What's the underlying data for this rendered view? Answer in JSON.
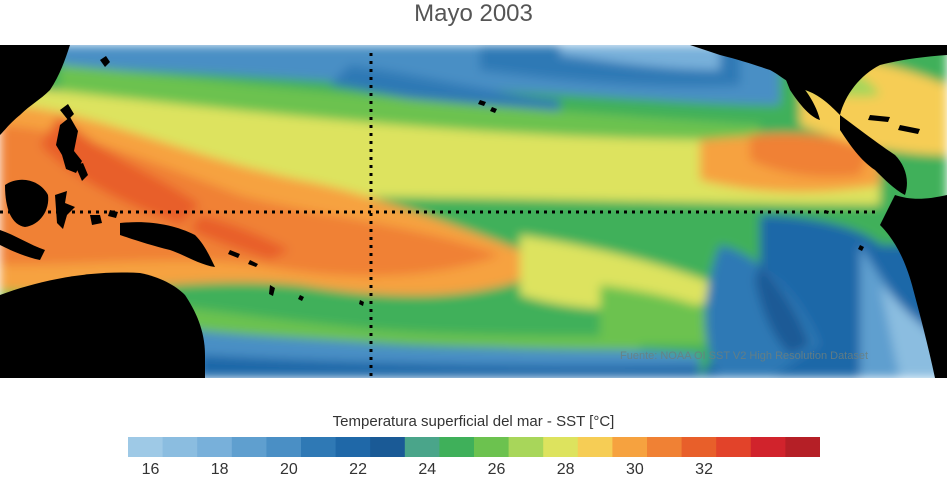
{
  "title": "Mayo 2003",
  "source": "Fuente: NOAA OI SST V2 High Resolution Dataset",
  "colorbar": {
    "label": "Temperatura superficial del mar - SST  [°C]",
    "colors": [
      "#9ec9e6",
      "#8bbde0",
      "#78b0da",
      "#5f9fcf",
      "#4a8fc5",
      "#2f79b5",
      "#1f68a8",
      "#1a5a96",
      "#4aa58a",
      "#3fb05a",
      "#6cc24f",
      "#a8d65a",
      "#dde35e",
      "#f6cd55",
      "#f6a23f",
      "#f08134",
      "#e85f2a",
      "#e2432a",
      "#d1232c",
      "#b51f26"
    ],
    "ticks": [
      "16",
      "18",
      "20",
      "22",
      "24",
      "26",
      "28",
      "30",
      "32"
    ]
  },
  "legend_colors": {
    "land": "#000000",
    "warm_pool": "#f08134",
    "cold_coast": "#2f79b5"
  }
}
